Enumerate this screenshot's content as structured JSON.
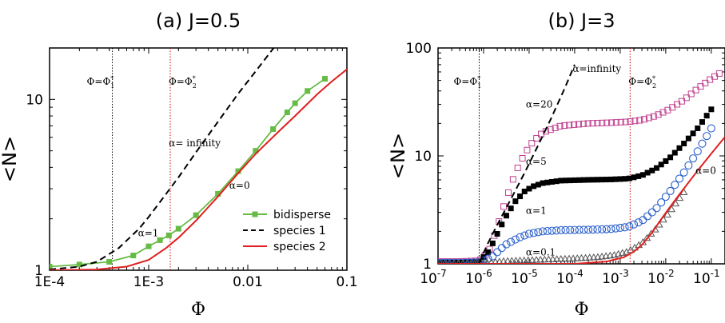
{
  "chart_data": [
    {
      "type": "line",
      "title": "(a) J=0.5",
      "xlabel": "Φ",
      "ylabel": "<N>",
      "xscale": "log",
      "yscale": "log",
      "xlim": [
        0.0001,
        0.1
      ],
      "ylim": [
        1,
        20
      ],
      "x_ticks": [
        {
          "value": 0.0001,
          "label": "1E-4"
        },
        {
          "value": 0.001,
          "label": "1E-3"
        },
        {
          "value": 0.01,
          "label": "0.01"
        },
        {
          "value": 0.1,
          "label": "0.1"
        }
      ],
      "y_ticks": [
        {
          "value": 1,
          "label": "1"
        },
        {
          "value": 10,
          "label": "10"
        }
      ],
      "vlines": [
        {
          "x": 0.00043,
          "label": "Φ=Φ1*",
          "color": "#000000"
        },
        {
          "x": 0.00165,
          "label": "Φ=Φ2*",
          "color": "#cc0000"
        }
      ],
      "annotations": [
        {
          "text": "α= infinity",
          "x": 0.0016,
          "y": 5.3
        },
        {
          "text": "α=0",
          "x": 0.0065,
          "y": 3.0
        },
        {
          "text": "α=1",
          "x": 0.00078,
          "y": 1.58
        }
      ],
      "legend": {
        "position": "bottom-right",
        "entries": [
          "bidisperse",
          "species 1",
          "species 2"
        ]
      },
      "series": [
        {
          "name": "bidisperse",
          "color": "#66bb44",
          "style": "line-marker",
          "x": [
            0.0001,
            0.0002,
            0.0004,
            0.0007,
            0.001,
            0.0013,
            0.0016,
            0.002,
            0.003,
            0.005,
            0.008,
            0.012,
            0.018,
            0.025,
            0.03,
            0.04,
            0.06
          ],
          "y": [
            1.05,
            1.08,
            1.12,
            1.22,
            1.38,
            1.5,
            1.6,
            1.75,
            2.1,
            2.8,
            3.8,
            5.0,
            6.7,
            8.4,
            9.5,
            11.2,
            13.2
          ]
        },
        {
          "name": "species 1",
          "color": "#000000",
          "style": "dashed",
          "x": [
            0.0001,
            0.0002,
            0.0003,
            0.0005,
            0.0008,
            0.001,
            0.0015,
            0.002,
            0.003,
            0.005,
            0.008,
            0.012,
            0.018,
            0.025
          ],
          "y": [
            1.01,
            1.05,
            1.12,
            1.35,
            1.75,
            2.05,
            2.8,
            3.5,
            4.9,
            7.4,
            10.8,
            14.6,
            19.8,
            25.0
          ]
        },
        {
          "name": "species 2",
          "color": "#e02020",
          "style": "solid",
          "x": [
            0.0001,
            0.0003,
            0.0006,
            0.001,
            0.0015,
            0.002,
            0.003,
            0.005,
            0.008,
            0.012,
            0.02,
            0.03,
            0.05,
            0.07,
            0.1
          ],
          "y": [
            1.0,
            1.01,
            1.05,
            1.15,
            1.35,
            1.55,
            1.95,
            2.7,
            3.7,
            4.8,
            6.4,
            8.0,
            10.7,
            12.7,
            15.0
          ]
        }
      ]
    },
    {
      "type": "scatter",
      "title": "(b) J=3",
      "xlabel": "Φ",
      "ylabel": "<N>",
      "xscale": "log",
      "yscale": "log",
      "xlim": [
        1e-07,
        0.2
      ],
      "ylim": [
        1,
        100
      ],
      "x_ticks": [
        {
          "value": 1e-07,
          "base": "10",
          "exp": "-7"
        },
        {
          "value": 1e-06,
          "base": "10",
          "exp": "-6"
        },
        {
          "value": 1e-05,
          "base": "10",
          "exp": "-5"
        },
        {
          "value": 0.0001,
          "base": "10",
          "exp": "-4"
        },
        {
          "value": 0.001,
          "base": "10",
          "exp": "-3"
        },
        {
          "value": 0.01,
          "base": "10",
          "exp": "-2"
        },
        {
          "value": 0.1,
          "base": "10",
          "exp": "-1"
        }
      ],
      "y_ticks": [
        {
          "value": 1,
          "label": "1"
        },
        {
          "value": 10,
          "label": "10"
        },
        {
          "value": 100,
          "label": "100"
        }
      ],
      "vlines": [
        {
          "x": 8e-07,
          "label": "Φ=Φ1*",
          "color": "#000000"
        },
        {
          "x": 0.00165,
          "label": "Φ=Φ2*",
          "color": "#cc0000"
        }
      ],
      "annotations": [
        {
          "text": "α=infinity",
          "x": 9e-05,
          "y": 60
        },
        {
          "text": "α=20",
          "x": 8.5e-06,
          "y": 28
        },
        {
          "text": "α=5",
          "x": 8.5e-06,
          "y": 8.3
        },
        {
          "text": "α=1",
          "x": 8.5e-06,
          "y": 2.9
        },
        {
          "text": "α=0.1",
          "x": 8.5e-06,
          "y": 1.2
        },
        {
          "text": "α=0",
          "x": 0.045,
          "y": 6.8
        }
      ],
      "series": [
        {
          "name": "α=20",
          "marker": "open-square",
          "color": "#c04090",
          "x": [
            1e-07,
            3e-07,
            8e-07,
            1.3e-06,
            2e-06,
            3e-06,
            5e-06,
            8e-06,
            1.2e-05,
            2e-05,
            5e-05,
            0.0002,
            0.0006,
            0.0015,
            0.003,
            0.006,
            0.012,
            0.025,
            0.05,
            0.1,
            0.15
          ],
          "y": [
            1.05,
            1.05,
            1.07,
            1.3,
            2.2,
            3.8,
            7.0,
            10.5,
            13.5,
            16.5,
            19.0,
            20.0,
            20.3,
            20.7,
            21.5,
            23.5,
            27.0,
            33.0,
            42.0,
            52.0,
            58.0
          ]
        },
        {
          "name": "α=5",
          "marker": "filled-square",
          "color": "#000000",
          "x": [
            1e-07,
            3e-07,
            8e-07,
            1.3e-06,
            2e-06,
            3e-06,
            5e-06,
            8e-06,
            1.2e-05,
            2e-05,
            5e-05,
            0.0002,
            0.0006,
            0.0015,
            0.003,
            0.006,
            0.012,
            0.025,
            0.05,
            0.1
          ],
          "y": [
            1.03,
            1.03,
            1.05,
            1.3,
            1.9,
            2.7,
            3.8,
            4.7,
            5.2,
            5.6,
            5.9,
            6.0,
            6.05,
            6.15,
            6.6,
            7.6,
            9.5,
            13.0,
            18.0,
            27.0
          ]
        },
        {
          "name": "α=1",
          "marker": "open-circle",
          "color": "#2a5fcc",
          "x": [
            1e-07,
            3e-07,
            8e-07,
            1.5e-06,
            3e-06,
            6e-06,
            1e-05,
            2e-05,
            5e-05,
            0.0002,
            0.0006,
            0.0015,
            0.003,
            0.006,
            0.012,
            0.025,
            0.05,
            0.1
          ],
          "y": [
            1.02,
            1.02,
            1.03,
            1.15,
            1.5,
            1.75,
            1.9,
            2.0,
            2.05,
            2.07,
            2.1,
            2.2,
            2.5,
            3.2,
            4.6,
            7.0,
            11.0,
            18.0
          ]
        },
        {
          "name": "α=0.1",
          "marker": "open-triangle",
          "color": "#555555",
          "x": [
            1e-07,
            3e-07,
            8e-07,
            1.5e-06,
            3e-06,
            1e-05,
            3e-05,
            0.0001,
            0.0003,
            0.0007,
            0.0015,
            0.003,
            0.006,
            0.012,
            0.025
          ],
          "y": [
            1.0,
            1.0,
            1.01,
            1.03,
            1.06,
            1.08,
            1.1,
            1.12,
            1.15,
            1.2,
            1.3,
            1.55,
            2.1,
            3.0,
            4.6
          ]
        },
        {
          "name": "α=0",
          "style": "solid",
          "color": "#e02020",
          "x": [
            1e-07,
            1e-06,
            1e-05,
            0.0001,
            0.0005,
            0.0012,
            0.002,
            0.003,
            0.005,
            0.008,
            0.012,
            0.02,
            0.05,
            0.1,
            0.2
          ],
          "y": [
            1.0,
            1.0,
            1.0,
            1.0,
            1.05,
            1.15,
            1.3,
            1.5,
            1.95,
            2.6,
            3.3,
            4.4,
            7.3,
            10.5,
            15.0
          ]
        },
        {
          "name": "α=infinity",
          "style": "dashed",
          "color": "#000000",
          "x": [
            8e-07,
            1.2e-06,
            2e-06,
            4e-06,
            8e-06,
            1.5e-05,
            3e-05,
            6e-05,
            0.0001
          ],
          "y": [
            1.02,
            1.5,
            2.3,
            4.0,
            7.0,
            12.0,
            22.0,
            42.0,
            70.0
          ]
        }
      ]
    }
  ]
}
